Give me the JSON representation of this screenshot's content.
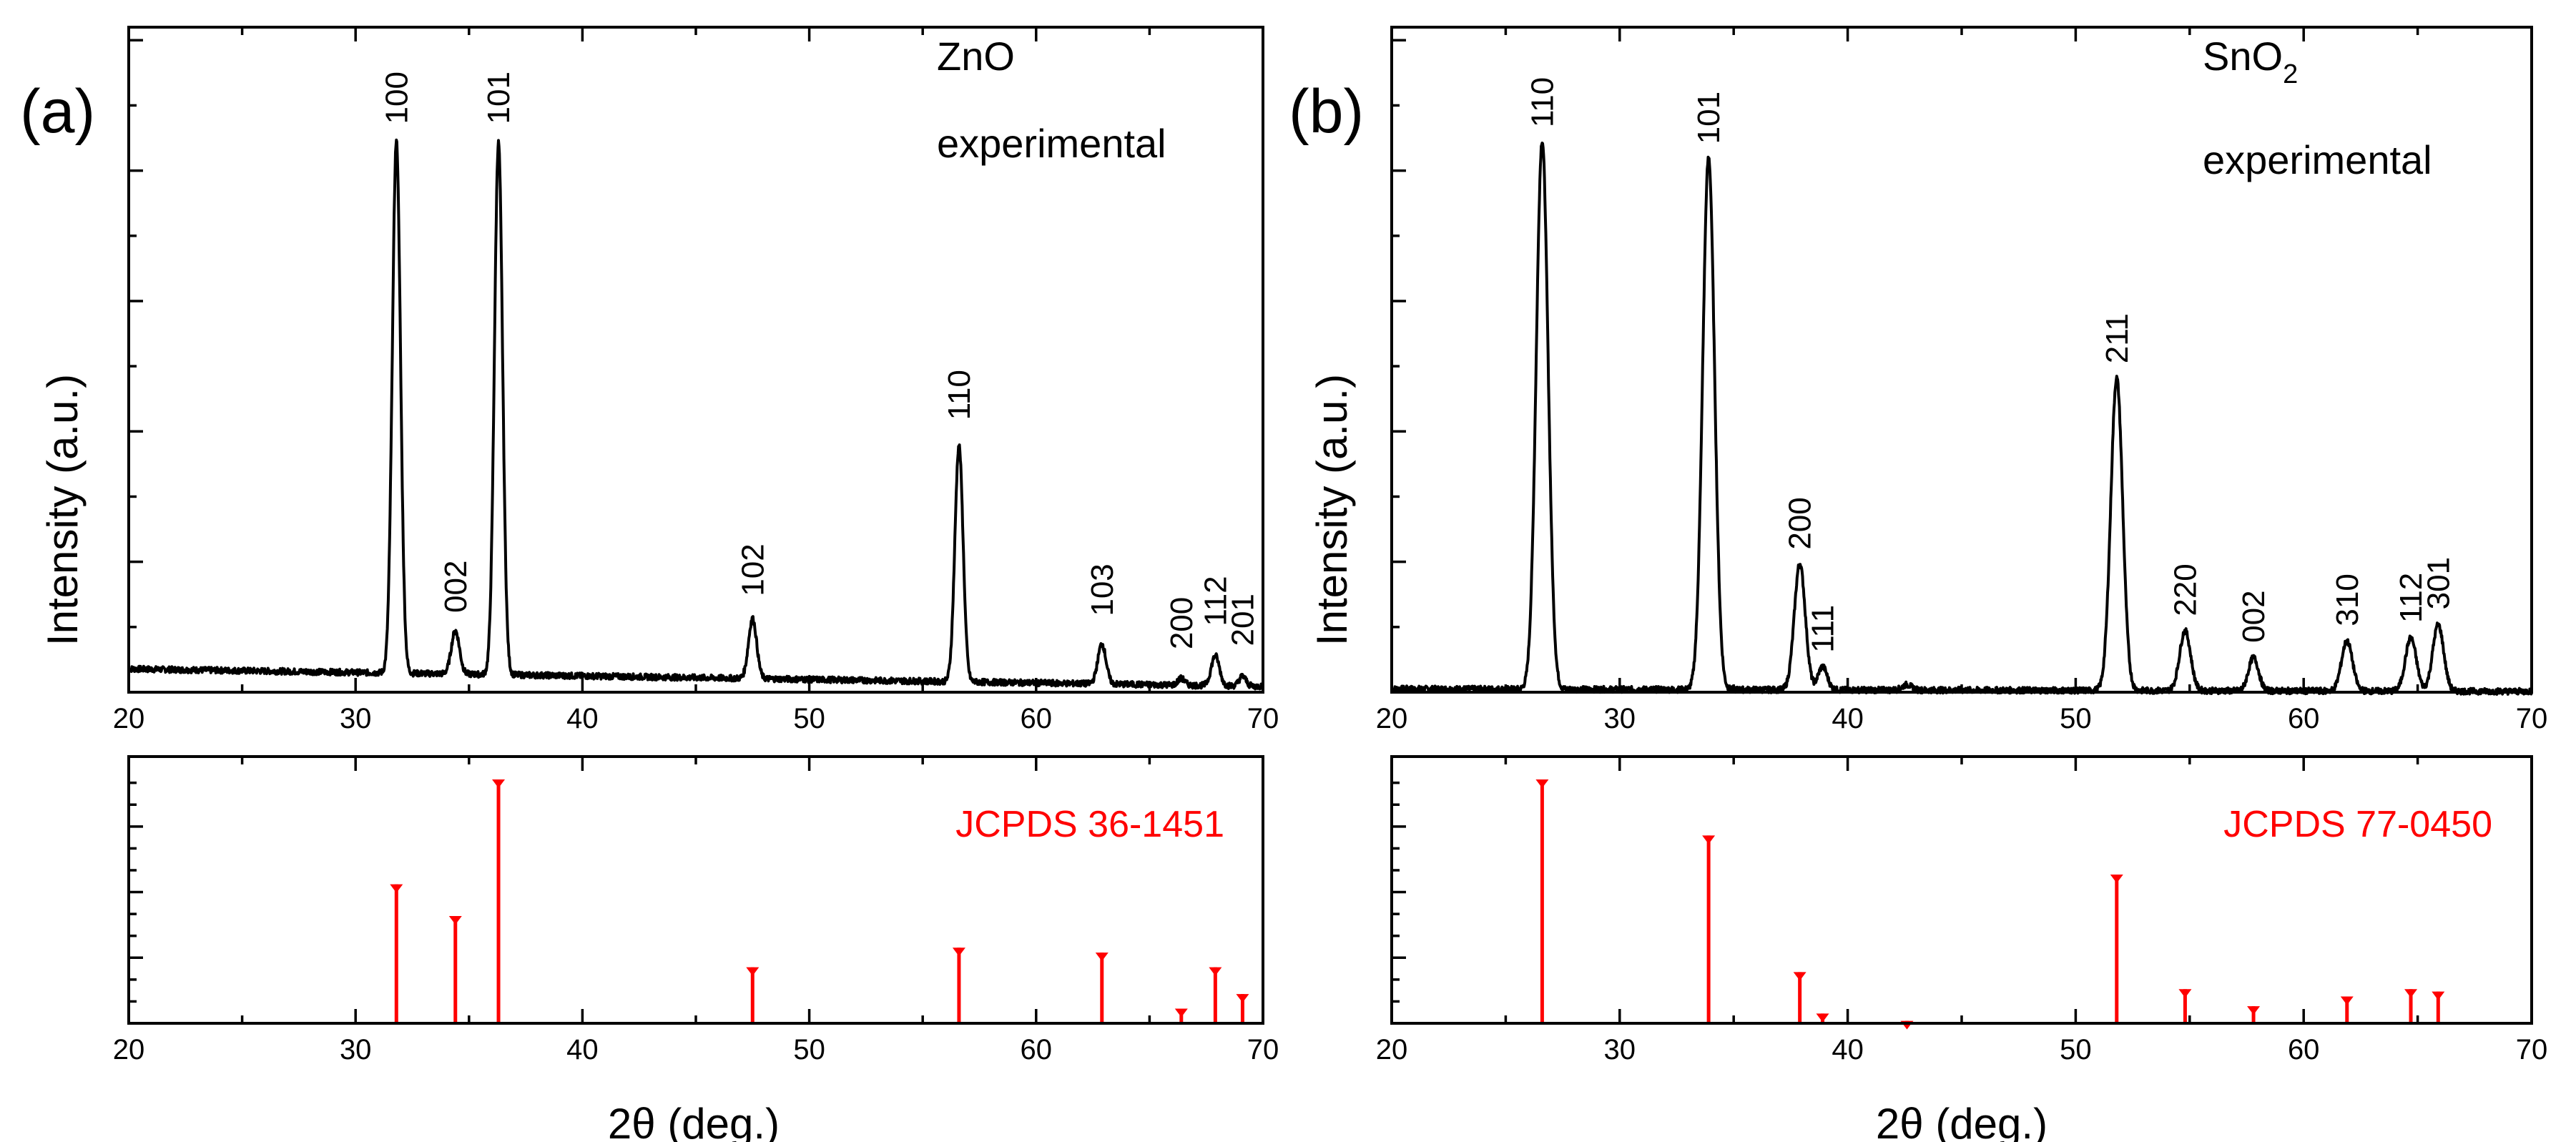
{
  "chart_data": [
    {
      "type": "line",
      "panel_label": "(a)",
      "title_lines": [
        "ZnO",
        "experimental"
      ],
      "xlabel": "",
      "ylabel": "Intensity (a.u.)",
      "xlim": [
        20,
        70
      ],
      "ylim": [
        0,
        100
      ],
      "x_ticks": [
        20,
        30,
        40,
        50,
        60,
        70
      ],
      "baseline": 3.5,
      "peaks": [
        {
          "x": 31.8,
          "height": 80,
          "width": 0.18,
          "label": "100"
        },
        {
          "x": 34.4,
          "height": 6.5,
          "width": 0.18,
          "label": "002"
        },
        {
          "x": 36.3,
          "height": 80,
          "width": 0.18,
          "label": "101"
        },
        {
          "x": 47.5,
          "height": 9,
          "width": 0.18,
          "label": "102"
        },
        {
          "x": 56.6,
          "height": 35.5,
          "width": 0.18,
          "label": "110"
        },
        {
          "x": 62.9,
          "height": 6,
          "width": 0.18,
          "label": "103"
        },
        {
          "x": 66.4,
          "height": 1,
          "width": 0.15,
          "label": "200"
        },
        {
          "x": 67.9,
          "height": 4.5,
          "width": 0.18,
          "label": "112"
        },
        {
          "x": 69.1,
          "height": 1.5,
          "width": 0.15,
          "label": "201"
        }
      ]
    },
    {
      "type": "bar",
      "panel_label": "",
      "reference_label": "JCPDS 36-1451",
      "xlabel": "2θ (deg.)",
      "ylabel": "",
      "xlim": [
        20,
        70
      ],
      "ylim": [
        0,
        100
      ],
      "x_ticks": [
        20,
        30,
        40,
        50,
        60,
        70
      ],
      "x": [
        31.8,
        34.4,
        36.3,
        47.5,
        56.6,
        62.9,
        66.4,
        67.9,
        69.1
      ],
      "values": [
        57,
        44,
        100,
        23,
        31,
        29,
        6,
        23,
        12
      ]
    },
    {
      "type": "line",
      "panel_label": "(b)",
      "title_lines": [
        "SnO",
        "experimental"
      ],
      "title_subscript": "2",
      "xlabel": "",
      "ylabel": "Intensity (a.u.)",
      "xlim": [
        20,
        70
      ],
      "ylim": [
        0,
        100
      ],
      "x_ticks": [
        20,
        30,
        40,
        50,
        60,
        70
      ],
      "baseline": 0.5,
      "peaks": [
        {
          "x": 26.6,
          "height": 82.5,
          "width": 0.26,
          "label": "110"
        },
        {
          "x": 33.9,
          "height": 80,
          "width": 0.26,
          "label": "101"
        },
        {
          "x": 37.9,
          "height": 19,
          "width": 0.24,
          "label": "200"
        },
        {
          "x": 38.9,
          "height": 3.5,
          "width": 0.2,
          "label": "111"
        },
        {
          "x": 42.6,
          "height": 0.8,
          "width": 0.2,
          "label": ""
        },
        {
          "x": 51.8,
          "height": 47,
          "width": 0.26,
          "label": "211"
        },
        {
          "x": 54.8,
          "height": 9,
          "width": 0.24,
          "label": "220"
        },
        {
          "x": 57.8,
          "height": 5,
          "width": 0.22,
          "label": "002"
        },
        {
          "x": 61.9,
          "height": 7.5,
          "width": 0.24,
          "label": "310"
        },
        {
          "x": 64.7,
          "height": 8,
          "width": 0.24,
          "label": "112"
        },
        {
          "x": 65.9,
          "height": 10,
          "width": 0.24,
          "label": "301"
        }
      ]
    },
    {
      "type": "bar",
      "panel_label": "",
      "reference_label": "JCPDS 77-0450",
      "xlabel": "2θ (deg.)",
      "ylabel": "",
      "xlim": [
        20,
        70
      ],
      "ylim": [
        0,
        100
      ],
      "x_ticks": [
        20,
        30,
        40,
        50,
        60,
        70
      ],
      "x": [
        26.6,
        33.9,
        37.9,
        38.9,
        42.6,
        51.8,
        54.8,
        57.8,
        61.9,
        64.7,
        65.9
      ],
      "values": [
        100,
        77,
        21,
        4,
        1,
        61,
        14,
        7,
        11,
        14,
        13
      ]
    }
  ],
  "colors": {
    "axis": "#000000",
    "trace": "#000000",
    "reference": "#ff0000"
  }
}
